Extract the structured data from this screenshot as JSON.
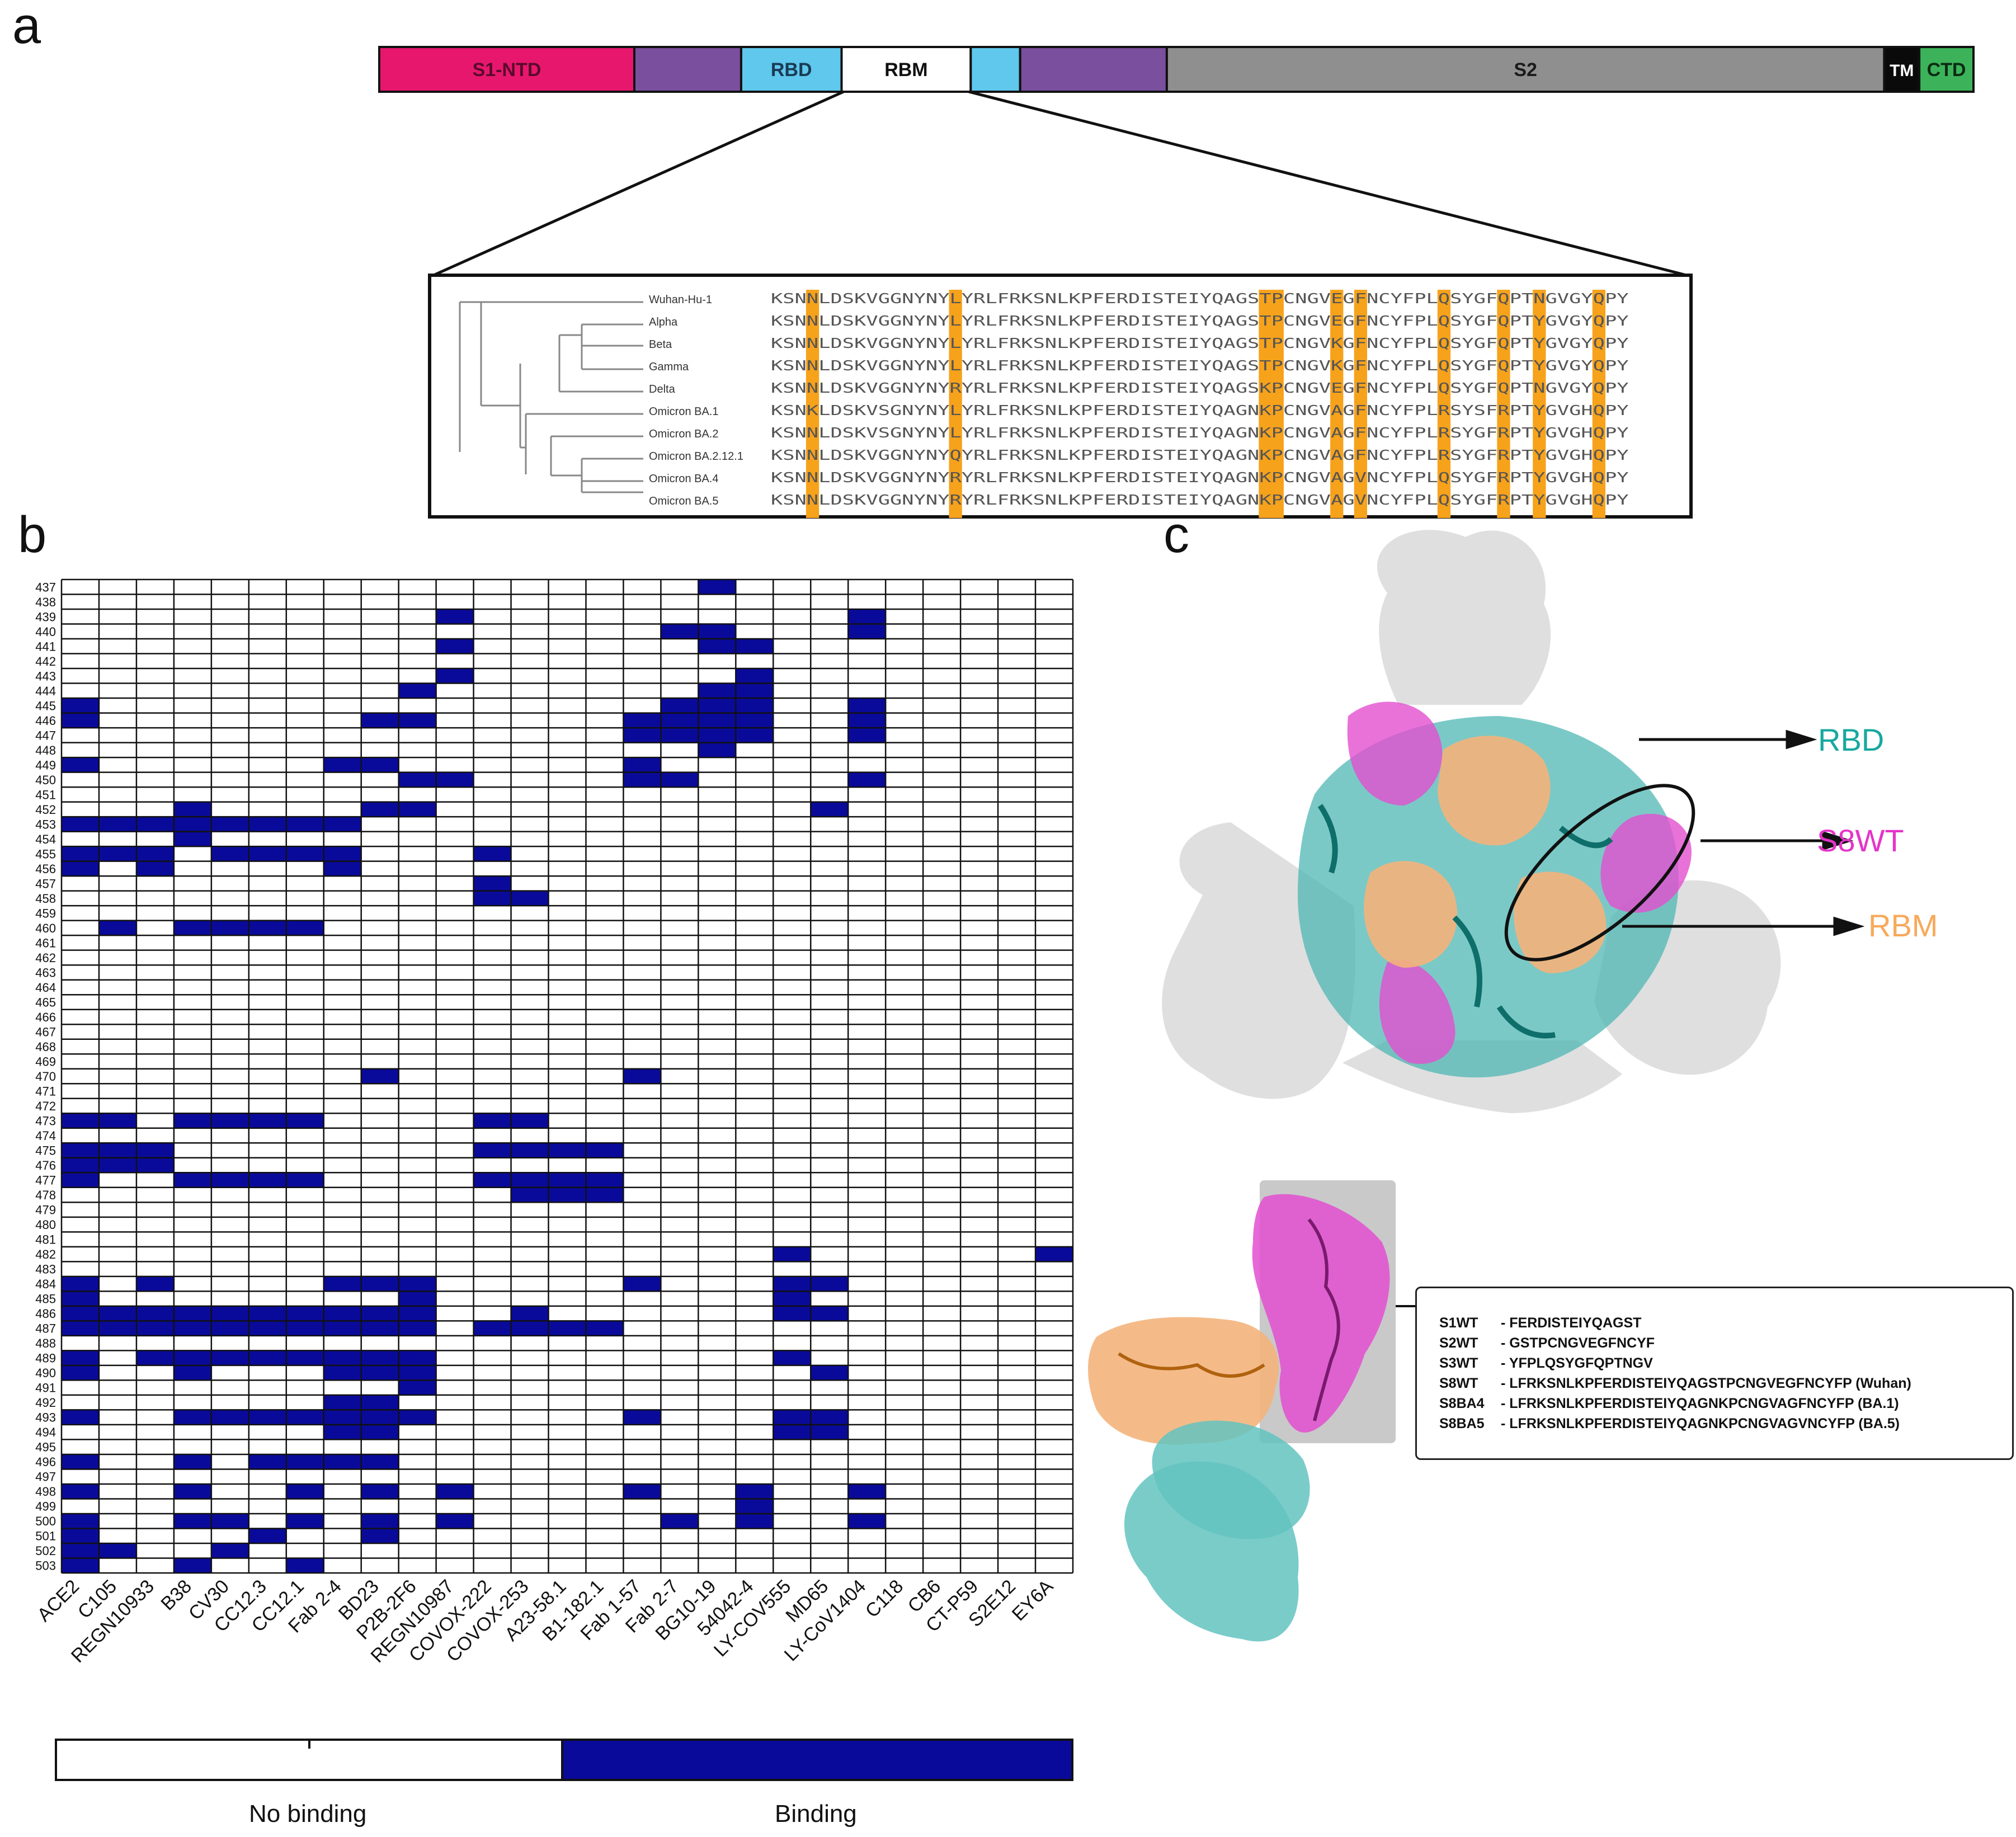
{
  "panels": {
    "a": "a",
    "b": "b",
    "c": "c"
  },
  "domain_bar": {
    "segments": [
      {
        "label": "S1-NTD",
        "color": "#e8176e",
        "text_color": "#5a0a2c",
        "start": 0,
        "end": 0.16
      },
      {
        "label": "",
        "color": "#7a4f9e",
        "text_color": "#000",
        "start": 0.16,
        "end": 0.227
      },
      {
        "label": "RBD",
        "color": "#5fc8ec",
        "text_color": "#1a3a55",
        "start": 0.227,
        "end": 0.29
      },
      {
        "label": "RBM",
        "color": "#ffffff",
        "text_color": "#111",
        "start": 0.29,
        "end": 0.371
      },
      {
        "label": "",
        "color": "#5fc8ec",
        "text_color": "#000",
        "start": 0.371,
        "end": 0.402
      },
      {
        "label": "",
        "color": "#7a4f9e",
        "text_color": "#000",
        "start": 0.402,
        "end": 0.494
      },
      {
        "label": "S2",
        "color": "#8f8f8f",
        "text_color": "#1b1b1b",
        "start": 0.494,
        "end": 0.944
      },
      {
        "label": "TM",
        "color": "#0a0a0a",
        "text_color": "#ffffff",
        "start": 0.944,
        "end": 0.966
      },
      {
        "label": "CTD",
        "color": "#3cb35a",
        "text_color": "#0b2b12",
        "start": 0.966,
        "end": 1.0
      }
    ]
  },
  "alignment": {
    "variants": [
      "Wuhan-Hu-1",
      "Alpha",
      "Beta",
      "Gamma",
      "Delta",
      "Omicron BA.1",
      "Omicron BA.2",
      "Omicron BA.2.12.1",
      "Omicron BA.4",
      "Omicron BA.5"
    ],
    "sequences": [
      "KSNNLDSKVGGNYNYLYRLFRKSNLKPFERDISTEIYQAGSTPCNGVEGFNCYFPLQSYGFQPTNGVGYQPY",
      "KSNNLDSKVGGNYNYLYRLFRKSNLKPFERDISTEIYQAGSTPCNGVEGFNCYFPLQSYGFQPTYGVGYQPY",
      "KSNNLDSKVGGNYNYLYRLFRKSNLKPFERDISTEIYQAGSTPCNGVKGFNCYFPLQSYGFQPTYGVGYQPY",
      "KSNNLDSKVGGNYNYLYRLFRKSNLKPFERDISTEIYQAGSTPCNGVKGFNCYFPLQSYGFQPTYGVGYQPY",
      "KSNNLDSKVGGNYNYRYRLFRKSNLKPFERDISTEIYQAGSKPCNGVEGFNCYFPLQSYGFQPTNGVGYQPY",
      "KSNKLDSKVSGNYNYLYRLFRKSNLKPFERDISTEIYQAGNKPCNGVAGFNCYFPLRSYSFRPTYGVGHQPY",
      "KSNNLDSKVSGNYNYLYRLFRKSNLKPFERDISTEIYQAGNKPCNGVAGFNCYFPLRSYGFRPTYGVGHQPY",
      "KSNNLDSKVGGNYNYQYRLFRKSNLKPFERDISTEIYQAGNKPCNGVAGFNCYFPLRSYGFRPTYGVGHQPY",
      "KSNNLDSKVGGNYNYRYRLFRKSNLKPFERDISTEIYQAGNKPCNGVAGVNCYFPLQSYGFRPTYGVGHQPY",
      "KSNNLDSKVGGNYNYRYRLFRKSNLKPFERDISTEIYQAGNKPCNGVAGVNCYFPLQSYGFRPTYGVGHQPY"
    ],
    "highlight_columns": [
      3,
      15,
      41,
      42,
      47,
      49,
      56,
      61,
      64,
      69
    ],
    "highlight_color": "#f7a21b"
  },
  "chart_data": {
    "type": "heatmap",
    "title": "",
    "xlabel": "",
    "ylabel": "",
    "y_range": [
      437,
      503
    ],
    "x": [
      "ACE2",
      "C105",
      "REGN10933",
      "B38",
      "CV30",
      "CC12.3",
      "CC12.1",
      "Fab 2-4",
      "BD23",
      "P2B-2F6",
      "REGN10987",
      "COVOX-222",
      "COVOX-253",
      "A23-58.1",
      "B1-182.1",
      "Fab 1-57",
      "Fab 2-7",
      "BG10-19",
      "54042-4",
      "LY-COV555",
      "MD65",
      "LY-CoV1404",
      "C118",
      "CB6",
      "CT-P59",
      "S2E12",
      "EY6A"
    ],
    "binding": {
      "ACE2": [
        445,
        446,
        449,
        453,
        455,
        456,
        473,
        475,
        476,
        477,
        484,
        485,
        486,
        487,
        489,
        490,
        493,
        496,
        498,
        500,
        501,
        502,
        503
      ],
      "C105": [
        453,
        455,
        460,
        473,
        475,
        476,
        486,
        487,
        502
      ],
      "REGN10933": [
        453,
        455,
        456,
        475,
        476,
        484,
        486,
        487,
        489
      ],
      "B38": [
        452,
        453,
        454,
        460,
        473,
        477,
        486,
        487,
        489,
        490,
        493,
        496,
        498,
        500,
        503
      ],
      "CV30": [
        453,
        455,
        460,
        473,
        477,
        486,
        487,
        489,
        493,
        500,
        502
      ],
      "CC12.3": [
        453,
        455,
        460,
        473,
        477,
        486,
        487,
        489,
        493,
        496,
        501
      ],
      "CC12.1": [
        453,
        455,
        460,
        473,
        477,
        486,
        487,
        489,
        493,
        496,
        498,
        500,
        503
      ],
      "Fab 2-4": [
        449,
        453,
        455,
        456,
        484,
        486,
        487,
        489,
        490,
        492,
        493,
        494,
        496
      ],
      "BD23": [
        446,
        449,
        452,
        470,
        484,
        486,
        487,
        489,
        490,
        492,
        493,
        494,
        496,
        498,
        500,
        501
      ],
      "P2B-2F6": [
        444,
        446,
        450,
        452,
        484,
        485,
        486,
        487,
        489,
        490,
        491,
        493
      ],
      "REGN10987": [
        439,
        441,
        443,
        450,
        498,
        500
      ],
      "COVOX-222": [
        455,
        457,
        458,
        473,
        475,
        477,
        487
      ],
      "COVOX-253": [
        458,
        473,
        475,
        477,
        478,
        486,
        487
      ],
      "A23-58.1": [
        475,
        477,
        478,
        487
      ],
      "B1-182.1": [
        475,
        477,
        478,
        487
      ],
      "Fab 1-57": [
        446,
        447,
        449,
        450,
        470,
        484,
        493,
        498
      ],
      "Fab 2-7": [
        440,
        445,
        446,
        447,
        450,
        500
      ],
      "BG10-19": [
        437,
        440,
        441,
        444,
        445,
        446,
        447,
        448
      ],
      "54042-4": [
        441,
        443,
        444,
        445,
        446,
        447,
        498,
        499,
        500
      ],
      "LY-COV555": [
        482,
        484,
        485,
        486,
        489,
        493,
        494
      ],
      "MD65": [
        452,
        484,
        486,
        490,
        493,
        494
      ],
      "LY-CoV1404": [
        439,
        440,
        445,
        446,
        447,
        450,
        498,
        500
      ],
      "C118": [],
      "CB6": [],
      "CT-P59": [],
      "S2E12": [],
      "EY6A": [
        482
      ]
    },
    "colors": {
      "binding": "#0a0a9a",
      "no_binding": "#ffffff"
    },
    "legend": {
      "no_binding": "No binding",
      "binding": "Binding"
    }
  },
  "structure_labels": {
    "rbd": {
      "text": "RBD",
      "color": "#17a8a0"
    },
    "s8wt": {
      "text": "S8WT",
      "color": "#e633c8"
    },
    "rbm": {
      "text": "RBM",
      "color": "#f7a95a"
    }
  },
  "peptides": [
    {
      "id": "S1WT",
      "seq": "- FERDISTEIYQAGST"
    },
    {
      "id": "S2WT",
      "seq": "- GSTPCNGVEGFNCYF"
    },
    {
      "id": "S3WT",
      "seq": "- YFPLQSYGFQPTNGV"
    },
    {
      "id": "S8WT",
      "seq": "- LFRKSNLKPFERDISTEIYQAGSTPCNGVEGFNCYFP (Wuhan)"
    },
    {
      "id": "S8BA4",
      "seq": "- LFRKSNLKPFERDISTEIYQAGNKPCNGVAGFNCYFP (BA.1)"
    },
    {
      "id": "S8BA5",
      "seq": "- LFRKSNLKPFERDISTEIYQAGNKPCNGVAGVNCYFP (BA.5)"
    }
  ]
}
